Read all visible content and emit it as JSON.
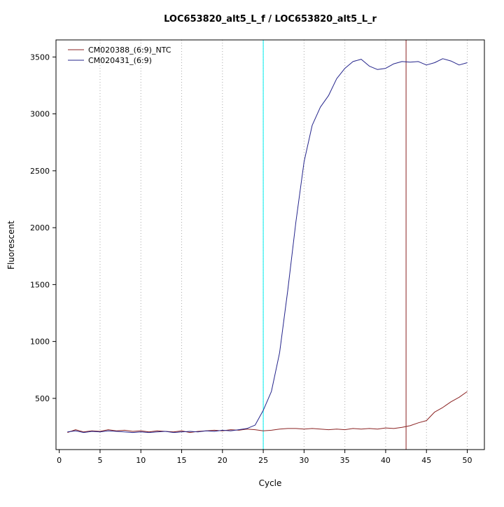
{
  "chart_data": {
    "type": "line",
    "title": "LOC653820_alt5_L_f / LOC653820_alt5_L_r",
    "xlabel": "Cycle",
    "ylabel": "Fluorescent",
    "xlim": [
      -0.4,
      52.1
    ],
    "ylim": [
      50,
      3650
    ],
    "x_ticks": [
      0,
      5,
      10,
      15,
      20,
      25,
      30,
      35,
      40,
      45,
      50
    ],
    "y_ticks": [
      500,
      1000,
      1500,
      2000,
      2500,
      3000,
      3500
    ],
    "grid": "vertical dotted lines at x ticks",
    "legend_position": "top-left",
    "x": [
      1,
      2,
      3,
      4,
      5,
      6,
      7,
      8,
      9,
      10,
      11,
      12,
      13,
      14,
      15,
      16,
      17,
      18,
      19,
      20,
      21,
      22,
      23,
      24,
      25,
      26,
      27,
      28,
      29,
      30,
      31,
      32,
      33,
      34,
      35,
      36,
      37,
      38,
      39,
      40,
      41,
      42,
      43,
      44,
      45,
      46,
      47,
      48,
      49,
      50
    ],
    "series": [
      {
        "name": "CM020388_(6:9)_NTC",
        "color": "#8b2323",
        "values": [
          200,
          225,
          205,
          215,
          210,
          225,
          215,
          220,
          210,
          215,
          205,
          215,
          210,
          205,
          215,
          200,
          210,
          215,
          220,
          215,
          225,
          220,
          230,
          225,
          215,
          220,
          230,
          235,
          235,
          230,
          235,
          230,
          225,
          230,
          225,
          235,
          230,
          235,
          230,
          240,
          235,
          245,
          260,
          285,
          305,
          380,
          420,
          470,
          510,
          560
        ]
      },
      {
        "name": "CM020431_(6:9)",
        "color": "#24248b",
        "values": [
          205,
          215,
          200,
          210,
          205,
          215,
          210,
          205,
          200,
          205,
          200,
          205,
          210,
          200,
          205,
          210,
          205,
          215,
          210,
          220,
          215,
          225,
          235,
          265,
          395,
          560,
          900,
          1450,
          2050,
          2580,
          2900,
          3060,
          3160,
          3310,
          3400,
          3460,
          3480,
          3420,
          3390,
          3400,
          3440,
          3460,
          3455,
          3460,
          3430,
          3450,
          3485,
          3465,
          3430,
          3450
        ]
      }
    ],
    "vlines": [
      {
        "x": 25,
        "color": "#00eeee",
        "name": "threshold-cycle-line-cyan"
      },
      {
        "x": 42.5,
        "color": "#8b2323",
        "name": "threshold-cycle-line-darkred"
      }
    ],
    "gridline_color": "#a8a8a8",
    "frame_color": "#000000"
  }
}
